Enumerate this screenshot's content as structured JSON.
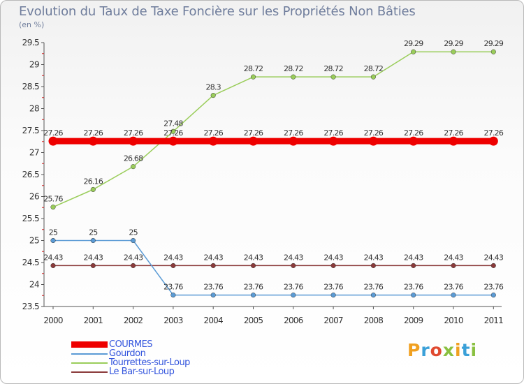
{
  "chart_data": {
    "type": "line",
    "title": "Evolution du Taux de Taxe Foncière sur les Propriétés Non Bâties",
    "ylabel": "(en %)",
    "xlabel": "",
    "categories": [
      "2000",
      "2001",
      "2002",
      "2003",
      "2004",
      "2005",
      "2006",
      "2007",
      "2008",
      "2009",
      "2010",
      "2011"
    ],
    "ylim": [
      23.5,
      29.5
    ],
    "yticks": [
      23.5,
      24,
      24.5,
      25,
      25.5,
      26,
      26.5,
      27,
      27.5,
      28,
      28.5,
      29,
      29.5
    ],
    "ytick_labels": [
      "23.5",
      "24",
      "24.5",
      "25",
      "25.5",
      "26",
      "26.5",
      "27",
      "27.5",
      "28",
      "28.5",
      "29",
      "29.5"
    ],
    "grid": false,
    "legend_position": "bottom-left",
    "series": [
      {
        "name": "COURMES",
        "color": "#ee0000",
        "values": [
          27.26,
          27.26,
          27.26,
          27.26,
          27.26,
          27.26,
          27.26,
          27.26,
          27.26,
          27.26,
          27.26,
          27.26
        ],
        "labels": [
          "27.26",
          "27.26",
          "27.26",
          "27.26",
          "27.26",
          "27.26",
          "27.26",
          "27.26",
          "27.26",
          "27.26",
          "27.26",
          "27.26"
        ]
      },
      {
        "name": "Gourdon",
        "color": "#5b9bd5",
        "values": [
          25,
          25,
          25,
          23.76,
          23.76,
          23.76,
          23.76,
          23.76,
          23.76,
          23.76,
          23.76,
          23.76
        ],
        "labels": [
          "25",
          "25",
          "25",
          "23.76",
          "23.76",
          "23.76",
          "23.76",
          "23.76",
          "23.76",
          "23.76",
          "23.76",
          "23.76"
        ]
      },
      {
        "name": "Tourrettes-sur-Loup",
        "color": "#9acd5a",
        "values": [
          25.76,
          26.16,
          26.68,
          27.48,
          28.3,
          28.72,
          28.72,
          28.72,
          28.72,
          29.29,
          29.29,
          29.29
        ],
        "labels": [
          "25.76",
          "26.16",
          "26.68",
          "27.48",
          "28.3",
          "28.72",
          "28.72",
          "28.72",
          "28.72",
          "29.29",
          "29.29",
          "29.29"
        ]
      },
      {
        "name": "Le Bar-sur-Loup",
        "color": "#8b3a3a",
        "values": [
          24.43,
          24.43,
          24.43,
          24.43,
          24.43,
          24.43,
          24.43,
          24.43,
          24.43,
          24.43,
          24.43,
          24.43
        ],
        "labels": [
          "24.43",
          "24.43",
          "24.43",
          "24.43",
          "24.43",
          "24.43",
          "24.43",
          "24.43",
          "24.43",
          "24.43",
          "24.43",
          "24.43"
        ]
      }
    ]
  },
  "logo": {
    "letters": [
      "P",
      "r",
      "o",
      "x",
      "i",
      "t",
      "i"
    ]
  }
}
